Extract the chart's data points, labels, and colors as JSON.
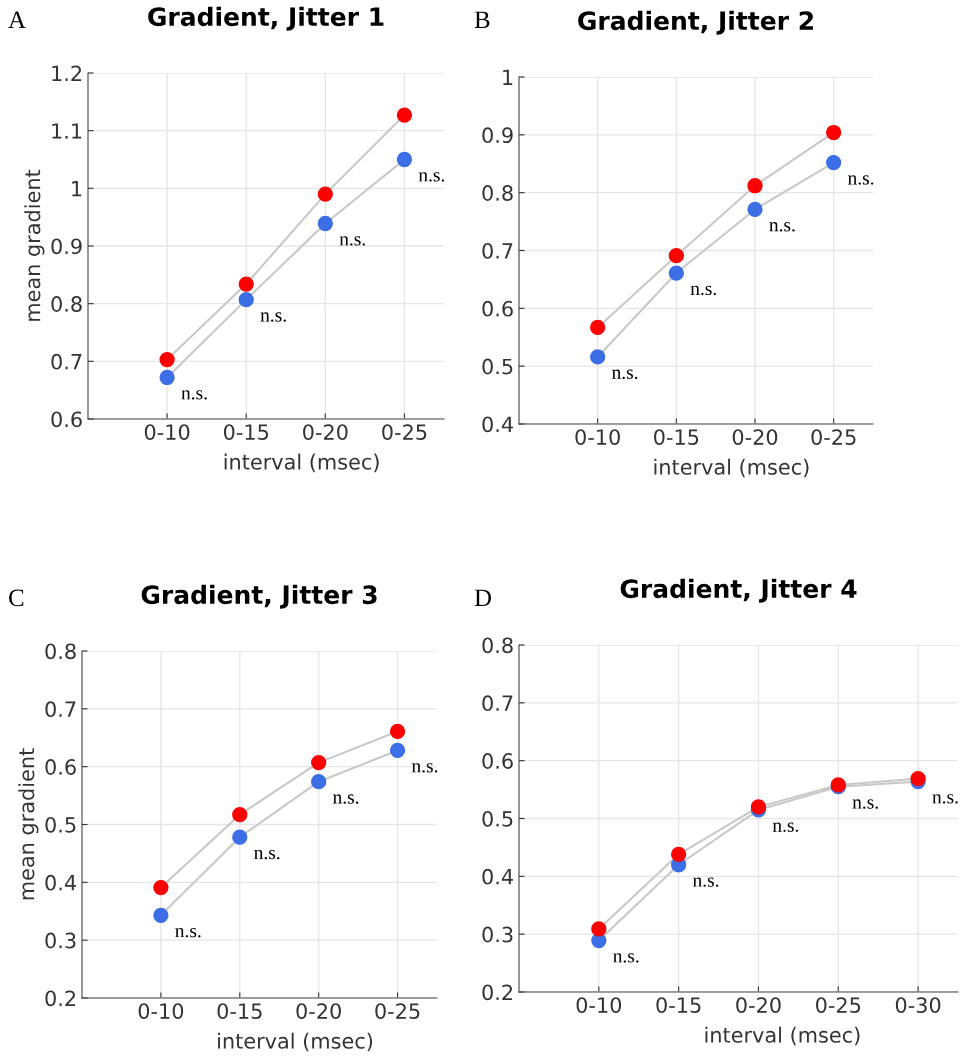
{
  "chart_data": [
    {
      "type": "line",
      "title": "Gradient, Jitter 1",
      "ylabel": "mean gradient",
      "xlabel": "interval (msec)",
      "categories": [
        "0-10",
        "0-15",
        "0-20",
        "0-25"
      ],
      "series": [
        {
          "color": "#ff0000",
          "values": [
            0.703,
            0.834,
            0.99,
            1.127
          ]
        },
        {
          "color": "#3c6ee6",
          "values": [
            0.672,
            0.807,
            0.939,
            1.05
          ]
        }
      ],
      "ylim": [
        0.6,
        1.2
      ],
      "yticks": [
        0.6,
        0.7,
        0.8,
        0.9,
        1,
        1.1,
        1.2
      ],
      "grid": true,
      "marker": "circle",
      "annotations": [
        "A",
        {
          "text": "n.s.",
          "x": "0-10",
          "y": 0.672
        },
        {
          "text": "n.s.",
          "x": "0-15",
          "y": 0.807
        },
        {
          "text": "n.s.",
          "x": "0-20",
          "y": 0.939
        },
        {
          "text": "n.s.",
          "x": "0-25",
          "y": 1.05
        }
      ]
    },
    {
      "type": "line",
      "title": "Gradient, Jitter 2",
      "xlabel": "interval (msec)",
      "categories": [
        "0-10",
        "0-15",
        "0-20",
        "0-25"
      ],
      "series": [
        {
          "color": "#ff0000",
          "values": [
            0.567,
            0.691,
            0.812,
            0.904
          ]
        },
        {
          "color": "#3c6ee6",
          "values": [
            0.516,
            0.661,
            0.771,
            0.852
          ]
        }
      ],
      "ylim": [
        0.4,
        1
      ],
      "yticks": [
        0.4,
        0.5,
        0.6,
        0.7,
        0.8,
        0.9,
        1
      ],
      "grid": true,
      "marker": "circle",
      "annotations": [
        "B",
        {
          "text": "n.s.",
          "x": "0-10",
          "y": 0.516
        },
        {
          "text": "n.s.",
          "x": "0-15",
          "y": 0.661
        },
        {
          "text": "n.s.",
          "x": "0-20",
          "y": 0.771
        },
        {
          "text": "n.s.",
          "x": "0-25",
          "y": 0.852
        }
      ]
    },
    {
      "type": "line",
      "title": "Gradient, Jitter 3",
      "ylabel": "mean gradient",
      "xlabel": "interval (msec)",
      "categories": [
        "0-10",
        "0-15",
        "0-20",
        "0-25"
      ],
      "series": [
        {
          "color": "#ff0000",
          "values": [
            0.391,
            0.517,
            0.607,
            0.661
          ]
        },
        {
          "color": "#3c6ee6",
          "values": [
            0.343,
            0.478,
            0.574,
            0.628
          ]
        }
      ],
      "ylim": [
        0.2,
        0.8
      ],
      "yticks": [
        0.2,
        0.3,
        0.4,
        0.5,
        0.6,
        0.7,
        0.8
      ],
      "grid": true,
      "marker": "circle",
      "annotations": [
        "C",
        {
          "text": "n.s.",
          "x": "0-10",
          "y": 0.343
        },
        {
          "text": "n.s.",
          "x": "0-15",
          "y": 0.478
        },
        {
          "text": "n.s.",
          "x": "0-20",
          "y": 0.574
        },
        {
          "text": "n.s.",
          "x": "0-25",
          "y": 0.628
        }
      ]
    },
    {
      "type": "line",
      "title": "Gradient, Jitter 4",
      "xlabel": "interval (msec)",
      "categories": [
        "0-10",
        "0-15",
        "0-20",
        "0-25",
        "0-30"
      ],
      "series": [
        {
          "color": "#ff0000",
          "values": [
            0.309,
            0.438,
            0.52,
            0.558,
            0.569
          ]
        },
        {
          "color": "#3c6ee6",
          "values": [
            0.289,
            0.42,
            0.515,
            0.555,
            0.564
          ]
        }
      ],
      "ylim": [
        0.2,
        0.8
      ],
      "yticks": [
        0.2,
        0.3,
        0.4,
        0.5,
        0.6,
        0.7,
        0.8
      ],
      "grid": true,
      "marker": "circle",
      "annotations": [
        "D",
        {
          "text": "n.s.",
          "x": "0-10",
          "y": 0.289
        },
        {
          "text": "n.s.",
          "x": "0-15",
          "y": 0.42
        },
        {
          "text": "n.s.",
          "x": "0-20",
          "y": 0.515
        },
        {
          "text": "n.s.",
          "x": "0-25",
          "y": 0.555
        },
        {
          "text": "n.s.",
          "x": "0-30",
          "y": 0.564
        }
      ]
    }
  ]
}
